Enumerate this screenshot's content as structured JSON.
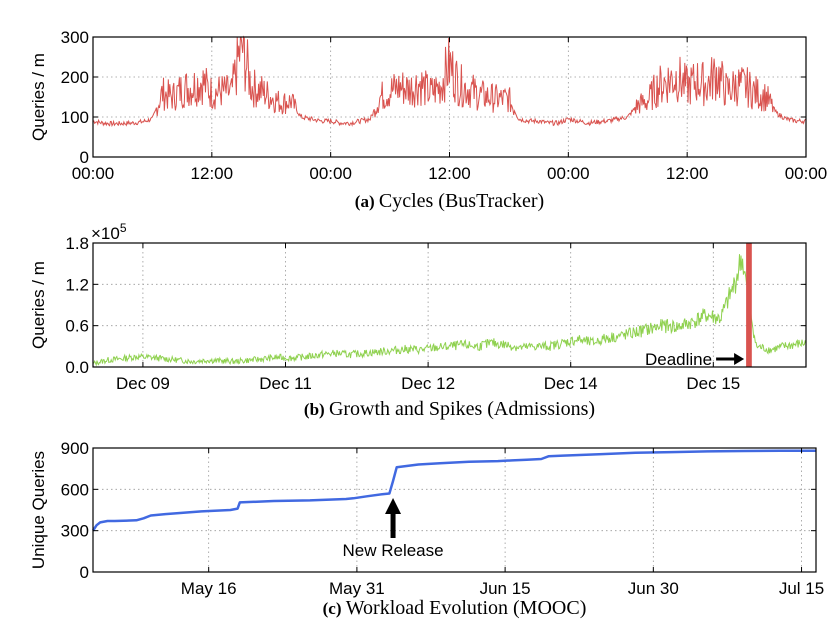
{
  "chart_data": [
    {
      "id": "a",
      "type": "line",
      "caption_tag": "(a)",
      "caption_text": "Cycles (BusTracker)",
      "ylabel": "Queries / m",
      "ylim": [
        0,
        300
      ],
      "yticks": [
        0,
        100,
        200,
        300
      ],
      "xlim": [
        0,
        72
      ],
      "xticks": [
        0,
        12,
        24,
        36,
        48,
        60,
        72
      ],
      "xtick_labels": [
        "00:00",
        "12:00",
        "00:00",
        "12:00",
        "00:00",
        "12:00",
        "00:00"
      ],
      "grid": true,
      "color": "#d9534f",
      "series": [
        {
          "x": [
            0,
            1,
            2,
            3,
            4,
            5,
            6,
            7,
            8,
            9,
            10,
            11,
            12,
            13,
            14,
            15,
            16,
            17,
            18,
            19,
            20,
            21,
            22,
            23,
            24,
            25,
            26,
            27,
            28,
            29,
            30,
            31,
            32,
            33,
            34,
            35,
            36,
            37,
            38,
            39,
            40,
            41,
            42,
            43,
            44,
            45,
            46,
            47,
            48,
            49,
            50,
            51,
            52,
            53,
            54,
            55,
            56,
            57,
            58,
            59,
            60,
            61,
            62,
            63,
            64,
            65,
            66,
            67,
            68,
            69,
            70,
            71,
            72
          ],
          "y": [
            90,
            85,
            83,
            84,
            85,
            88,
            95,
            160,
            150,
            170,
            175,
            190,
            160,
            165,
            160,
            285,
            175,
            165,
            150,
            135,
            140,
            100,
            95,
            90,
            90,
            85,
            85,
            90,
            95,
            150,
            165,
            175,
            170,
            185,
            160,
            175,
            230,
            180,
            170,
            155,
            150,
            145,
            145,
            95,
            90,
            90,
            85,
            85,
            95,
            90,
            85,
            88,
            90,
            95,
            100,
            130,
            140,
            175,
            190,
            200,
            175,
            190,
            180,
            210,
            165,
            180,
            175,
            160,
            150,
            110,
            95,
            90,
            90
          ]
        }
      ]
    },
    {
      "id": "b",
      "type": "line",
      "caption_tag": "(b)",
      "caption_text": "Growth and Spikes (Admissions)",
      "ylabel": "Queries / m",
      "ylim": [
        0,
        1.8
      ],
      "yticks": [
        0.0,
        0.6,
        1.2,
        1.8
      ],
      "ytick_labels": [
        "0.0",
        "0.6",
        "1.2",
        "1.8"
      ],
      "multiplier_base": "×10",
      "multiplier_exp": "5",
      "xlim": [
        0,
        100
      ],
      "xticks": [
        7,
        27,
        47,
        67,
        87
      ],
      "xtick_labels": [
        "Dec 09",
        "Dec 11",
        "Dec 12",
        "Dec 14",
        "Dec 15"
      ],
      "grid": true,
      "color": "#8fd14f",
      "spike_color": "#d9534f",
      "spike_x": [
        91.6,
        92.4
      ],
      "annotation": "Deadline",
      "series": [
        {
          "x": [
            0,
            2,
            4,
            6,
            8,
            10,
            12,
            14,
            16,
            18,
            20,
            22,
            24,
            26,
            28,
            30,
            32,
            34,
            36,
            38,
            40,
            42,
            44,
            46,
            48,
            50,
            52,
            54,
            56,
            58,
            60,
            62,
            64,
            66,
            68,
            70,
            72,
            74,
            76,
            78,
            80,
            82,
            84,
            86,
            88,
            90,
            91,
            93,
            95,
            97,
            100
          ],
          "y": [
            0.05,
            0.1,
            0.12,
            0.15,
            0.14,
            0.12,
            0.1,
            0.08,
            0.1,
            0.09,
            0.08,
            0.1,
            0.12,
            0.14,
            0.13,
            0.15,
            0.18,
            0.2,
            0.18,
            0.2,
            0.22,
            0.24,
            0.26,
            0.25,
            0.28,
            0.3,
            0.32,
            0.3,
            0.35,
            0.32,
            0.28,
            0.3,
            0.3,
            0.35,
            0.4,
            0.35,
            0.42,
            0.45,
            0.5,
            0.55,
            0.6,
            0.58,
            0.65,
            0.75,
            0.7,
            1.2,
            1.6,
            0.3,
            0.25,
            0.3,
            0.35
          ]
        }
      ]
    },
    {
      "id": "c",
      "type": "line",
      "caption_tag": "(c)",
      "caption_text": "Workload Evolution (MOOC)",
      "ylabel": "Unique Queries",
      "ylim": [
        0,
        900
      ],
      "yticks": [
        0,
        300,
        600,
        900
      ],
      "xlim": [
        0,
        100
      ],
      "xticks": [
        16,
        36.5,
        57,
        77.5,
        98
      ],
      "xtick_labels": [
        "May 16",
        "May 31",
        "Jun 15",
        "Jun 30",
        "Jul 15"
      ],
      "grid": true,
      "color": "#4169e1",
      "annotation": "New Release",
      "annotation_x": 41.5,
      "series": [
        {
          "x": [
            0,
            0.5,
            1,
            2,
            3,
            6,
            7,
            8,
            10,
            15,
            19,
            20,
            20.3,
            25,
            30,
            35,
            36,
            38,
            40,
            41,
            41.5,
            42,
            45,
            48,
            50,
            52,
            56,
            58,
            60,
            62,
            63,
            65,
            70,
            75,
            80,
            85,
            90,
            95,
            100
          ],
          "y": [
            300,
            340,
            360,
            370,
            370,
            375,
            390,
            410,
            420,
            440,
            450,
            460,
            505,
            515,
            520,
            530,
            535,
            550,
            565,
            570,
            660,
            760,
            780,
            790,
            795,
            800,
            805,
            810,
            815,
            820,
            840,
            845,
            855,
            865,
            870,
            875,
            878,
            880,
            880
          ]
        }
      ]
    }
  ]
}
